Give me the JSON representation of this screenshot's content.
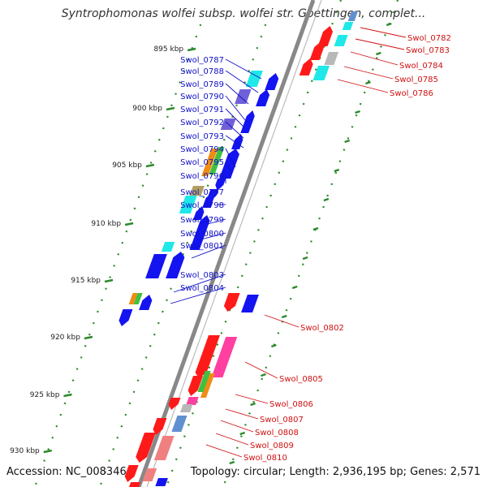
{
  "title": "Syntrophomonas wolfei subsp. wolfei str. Goettingen, complet...",
  "footer": {
    "accession": "Accession: NC_008346",
    "topology": "Topology: circular; Length: 2,936,195 bp; Genes: 2,571"
  },
  "colors": {
    "backbone": "#888888",
    "tick": "#2a8a2a",
    "left_labels": "#1010c8",
    "right_labels": "#d01010"
  },
  "scale_labels": [
    "895 kbp",
    "900 kbp",
    "905 kbp",
    "910 kbp",
    "915 kbp",
    "920 kbp",
    "925 kbp",
    "930 kbp"
  ],
  "left_labels": [
    "Swol_0787",
    "Swol_0788",
    "Swol_0789",
    "Swol_0790",
    "Swol_0791",
    "Swol_0792",
    "Swol_0793",
    "Swol_0794",
    "Swol_0795",
    "Swol_0796",
    "Swol_0797",
    "Swol_0798",
    "Swol_0799",
    "Swol_0800",
    "Swol_0801",
    "Swol_0803",
    "Swol_0804"
  ],
  "right_labels": [
    "Swol_0782",
    "Swol_0783",
    "Swol_0784",
    "Swol_0785",
    "Swol_0786",
    "Swol_0802",
    "Swol_0805",
    "Swol_0806",
    "Swol_0807",
    "Swol_0808",
    "Swol_0809",
    "Swol_0810"
  ]
}
